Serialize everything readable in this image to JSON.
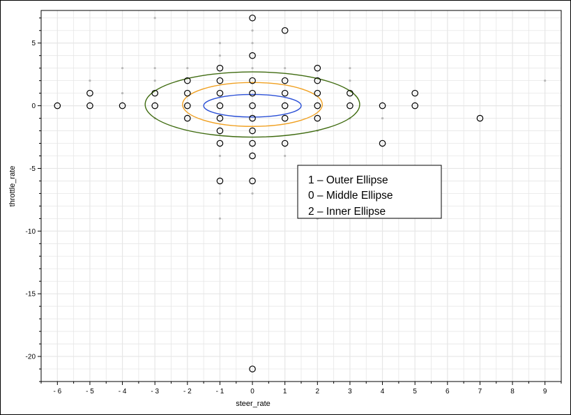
{
  "chart_data": {
    "type": "scatter",
    "xlabel": "steer_rate",
    "ylabel": "throttle_rate",
    "xlim": [
      -6.5,
      9.5
    ],
    "ylim": [
      -22,
      7.6
    ],
    "x_ticks": [
      -6,
      -5,
      -4,
      -3,
      -2,
      -1,
      0,
      1,
      2,
      3,
      4,
      5,
      6,
      7,
      8,
      9
    ],
    "y_ticks": [
      5,
      0,
      -5,
      -10,
      -15,
      -20
    ],
    "grid": true,
    "colors": {
      "outer": "#3f6b10",
      "middle": "#f0a020",
      "inner": "#2a4fd6",
      "observed": "#000000",
      "background_points": "#b8b8b8",
      "grid": "#e6e6e6"
    },
    "series": [
      {
        "role": "observed",
        "marker": "open-circle",
        "points": [
          [
            -6,
            0
          ],
          [
            -5,
            1
          ],
          [
            -5,
            0
          ],
          [
            -4,
            0
          ],
          [
            -3,
            1
          ],
          [
            -3,
            0
          ],
          [
            -2,
            2
          ],
          [
            -2,
            1
          ],
          [
            -2,
            0
          ],
          [
            -2,
            -1
          ],
          [
            -1,
            3
          ],
          [
            -1,
            2
          ],
          [
            -1,
            1
          ],
          [
            -1,
            0
          ],
          [
            -1,
            -1
          ],
          [
            -1,
            -2
          ],
          [
            -1,
            -3
          ],
          [
            -1,
            -6
          ],
          [
            0,
            7
          ],
          [
            0,
            4
          ],
          [
            0,
            2
          ],
          [
            0,
            1
          ],
          [
            0,
            0
          ],
          [
            0,
            -1
          ],
          [
            0,
            -2
          ],
          [
            0,
            -3
          ],
          [
            0,
            -4
          ],
          [
            0,
            -6
          ],
          [
            0,
            -21
          ],
          [
            1,
            6
          ],
          [
            1,
            2
          ],
          [
            1,
            1
          ],
          [
            1,
            0
          ],
          [
            1,
            -1
          ],
          [
            1,
            -3
          ],
          [
            2,
            3
          ],
          [
            2,
            2
          ],
          [
            2,
            1
          ],
          [
            2,
            0
          ],
          [
            2,
            -1
          ],
          [
            3,
            1
          ],
          [
            3,
            0
          ],
          [
            4,
            0
          ],
          [
            4,
            -3
          ],
          [
            5,
            1
          ],
          [
            5,
            0
          ],
          [
            7,
            -1
          ]
        ]
      },
      {
        "role": "background",
        "marker": "dot",
        "points": [
          [
            -5,
            2
          ],
          [
            -4,
            3
          ],
          [
            -4,
            1
          ],
          [
            -3,
            7
          ],
          [
            -3,
            3
          ],
          [
            -3,
            2
          ],
          [
            -3,
            -1
          ],
          [
            -2,
            3
          ],
          [
            -1,
            5
          ],
          [
            -1,
            4
          ],
          [
            -1,
            -4
          ],
          [
            -1,
            -7
          ],
          [
            -1,
            -9
          ],
          [
            0,
            6
          ],
          [
            0,
            5
          ],
          [
            0,
            3
          ],
          [
            0,
            -7
          ],
          [
            1,
            3
          ],
          [
            1,
            -4
          ],
          [
            2,
            -2
          ],
          [
            2,
            -9
          ],
          [
            3,
            3
          ],
          [
            3,
            2
          ],
          [
            3,
            -1
          ],
          [
            4,
            -1
          ],
          [
            9,
            2
          ]
        ]
      }
    ],
    "ellipses": [
      {
        "role": "outer",
        "cx": 0,
        "cy": 0.1,
        "rx": 3.3,
        "ry": 2.6
      },
      {
        "role": "middle",
        "cx": 0,
        "cy": 0.1,
        "rx": 2.15,
        "ry": 1.75
      },
      {
        "role": "inner",
        "cx": 0,
        "cy": 0,
        "rx": 1.5,
        "ry": 0.9
      }
    ],
    "legend": {
      "placement": "center-right",
      "entries": [
        "1 – Outer Ellipse",
        "0 – Middle Ellipse",
        "2 – Inner Ellipse"
      ]
    }
  }
}
